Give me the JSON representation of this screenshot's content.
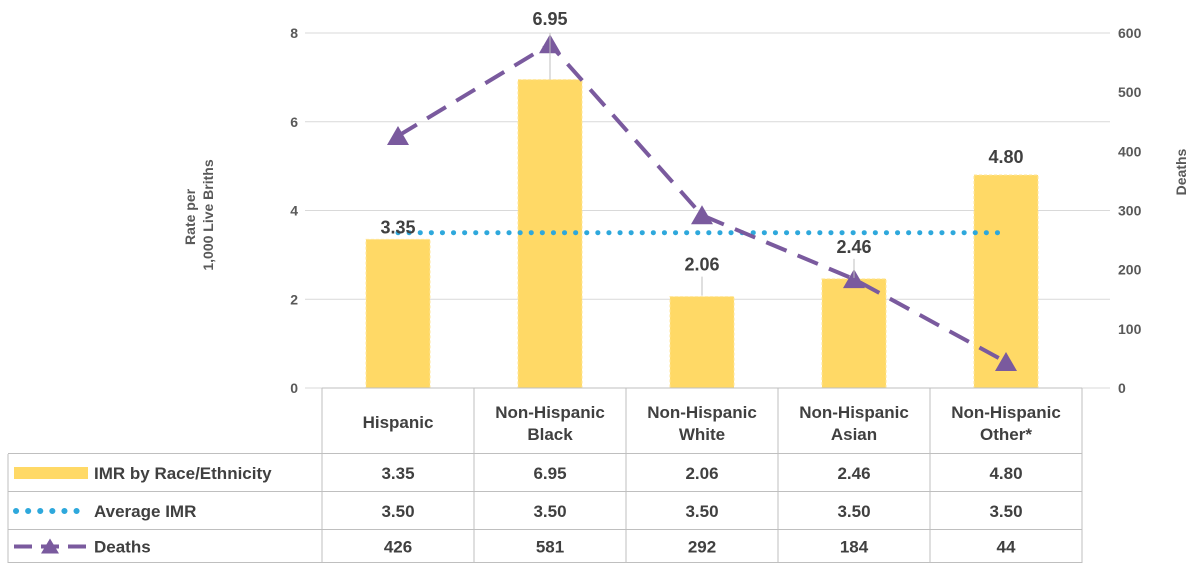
{
  "chart_data": {
    "type": "bar",
    "categories": [
      [
        "Hispanic"
      ],
      [
        "Non-Hispanic",
        "Black"
      ],
      [
        "Non-Hispanic",
        "White"
      ],
      [
        "Non-Hispanic",
        "Asian"
      ],
      [
        "Non-Hispanic",
        "Other*"
      ]
    ],
    "series": [
      {
        "name": "IMR by Race/Ethnicity",
        "type": "bar",
        "axis": "left",
        "values": [
          3.35,
          6.95,
          2.06,
          2.46,
          4.8
        ],
        "labels": [
          "3.35",
          "6.95",
          "2.06",
          "2.46",
          "4.80"
        ],
        "color": "#FFD966"
      },
      {
        "name": "Average IMR",
        "type": "line",
        "style": "dotted",
        "axis": "left",
        "values": [
          3.5,
          3.5,
          3.5,
          3.5,
          3.5
        ],
        "labels": [
          "3.50",
          "3.50",
          "3.50",
          "3.50",
          "3.50"
        ],
        "color": "#2EA8DC"
      },
      {
        "name": "Deaths",
        "type": "line",
        "style": "dashed",
        "marker": "triangle",
        "axis": "right",
        "values": [
          426,
          581,
          292,
          184,
          44
        ],
        "labels": [
          "426",
          "581",
          "292",
          "184",
          "44"
        ],
        "color": "#7A5A9E"
      }
    ],
    "y_left": {
      "label_lines": [
        "Rate per",
        "1,000 Live Briths"
      ],
      "ylim": [
        0,
        8
      ],
      "ticks": [
        "0",
        "2",
        "4",
        "6",
        "8"
      ]
    },
    "y_right": {
      "label": "Deaths",
      "ylim": [
        0,
        600
      ],
      "ticks": [
        "0",
        "100",
        "200",
        "300",
        "400",
        "500",
        "600"
      ]
    },
    "grid": true,
    "legend": "data-table"
  }
}
